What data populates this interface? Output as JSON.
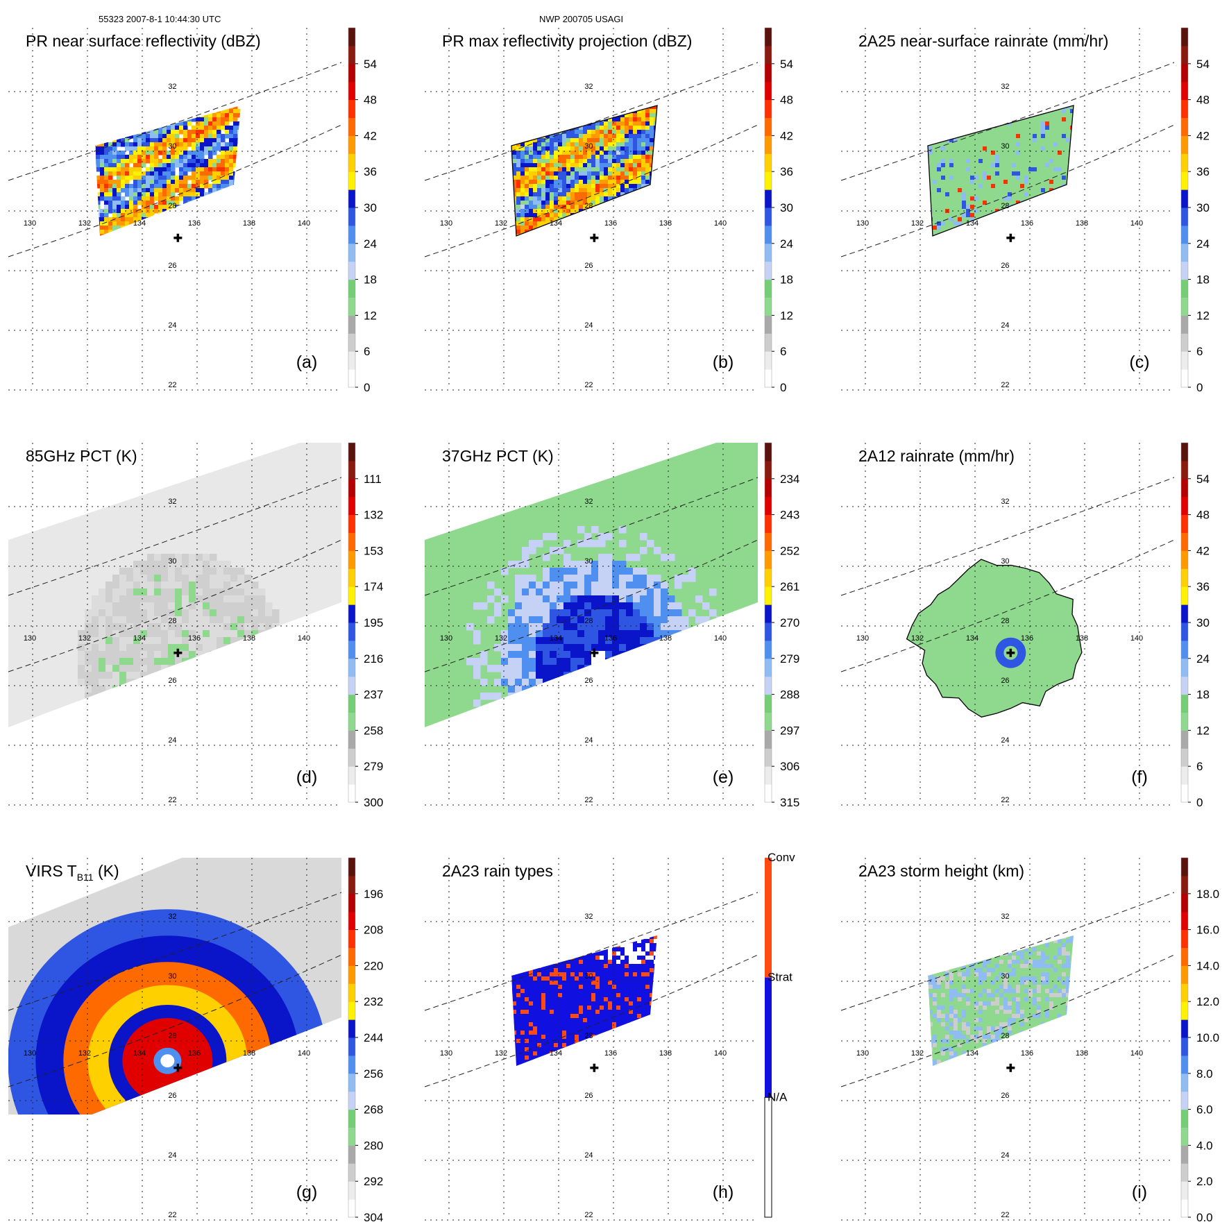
{
  "header": {
    "orbit_time": "55323 2007-8-1 10:44:30 UTC",
    "storm": "NWP 200705 USAGI"
  },
  "colors": {
    "palette": [
      "#ffffff",
      "#ececec",
      "#cdcdcd",
      "#a9a9a9",
      "#8ed98e",
      "#74cf74",
      "#c6d2f5",
      "#8fbcf2",
      "#4f8ff0",
      "#2e56e3",
      "#0a14c9",
      "#fff200",
      "#ffd000",
      "#ff9a00",
      "#ff6a00",
      "#ff3000",
      "#e00000",
      "#b40000",
      "#8a1a10",
      "#5a120c"
    ],
    "grid": "#222222",
    "na": "#ffffff",
    "strat": "#1010e0",
    "conv": "#ff4a10"
  },
  "chart_data": [
    {
      "type": "heatmap",
      "id": "a",
      "title": "PR near surface reflectivity (dBZ)",
      "panel_label": "(a)",
      "field": "pr_swath_reflectivity",
      "lon_ticks": [
        "130",
        "132",
        "134",
        "136",
        "138",
        "140"
      ],
      "lat_ticks": [
        "32",
        "30",
        "28",
        "26",
        "24",
        "22"
      ],
      "lon_range": [
        129,
        142
      ],
      "lat_range": [
        21,
        33
      ],
      "colorbar": {
        "ticks": [
          "0",
          "6",
          "12",
          "18",
          "24",
          "30",
          "36",
          "42",
          "48",
          "54"
        ],
        "range": [
          0,
          60
        ]
      },
      "storm_center": {
        "lon": 135.3,
        "lat": 27.1
      }
    },
    {
      "type": "heatmap",
      "id": "b",
      "title": "PR max reflectivity projection (dBZ)",
      "panel_label": "(b)",
      "field": "pr_swath_max",
      "lon_ticks": [
        "130",
        "132",
        "134",
        "136",
        "138",
        "140"
      ],
      "lat_ticks": [
        "32",
        "30",
        "28",
        "26",
        "24",
        "22"
      ],
      "lon_range": [
        129,
        142
      ],
      "lat_range": [
        21,
        33
      ],
      "colorbar": {
        "ticks": [
          "0",
          "6",
          "12",
          "18",
          "24",
          "30",
          "36",
          "42",
          "48",
          "54"
        ],
        "range": [
          0,
          60
        ]
      },
      "storm_center": {
        "lon": 135.3,
        "lat": 27.1
      }
    },
    {
      "type": "heatmap",
      "id": "c",
      "title": "2A25 near-surface rainrate (mm/hr)",
      "panel_label": "(c)",
      "field": "pr_rainrate",
      "lon_ticks": [
        "130",
        "132",
        "134",
        "136",
        "138",
        "140"
      ],
      "lat_ticks": [
        "32",
        "30",
        "28",
        "26",
        "24",
        "22"
      ],
      "lon_range": [
        129,
        142
      ],
      "lat_range": [
        21,
        33
      ],
      "colorbar": {
        "ticks": [
          "0",
          "6",
          "12",
          "18",
          "24",
          "30",
          "36",
          "42",
          "48",
          "54"
        ],
        "range": [
          0,
          60
        ]
      },
      "storm_center": {
        "lon": 135.3,
        "lat": 27.1
      }
    },
    {
      "type": "heatmap",
      "id": "d",
      "title": "85GHz PCT (K)",
      "panel_label": "(d)",
      "field": "tmi_85",
      "lon_ticks": [
        "130",
        "132",
        "134",
        "136",
        "138",
        "140"
      ],
      "lat_ticks": [
        "32",
        "30",
        "28",
        "26",
        "24",
        "22"
      ],
      "lon_range": [
        129,
        142
      ],
      "lat_range": [
        21,
        33
      ],
      "colorbar": {
        "ticks": [
          "300",
          "279",
          "258",
          "237",
          "216",
          "195",
          "174",
          "153",
          "132",
          "111"
        ],
        "range": [
          300,
          90
        ]
      },
      "storm_center": {
        "lon": 135.3,
        "lat": 27.1
      }
    },
    {
      "type": "heatmap",
      "id": "e",
      "title": "37GHz PCT (K)",
      "panel_label": "(e)",
      "field": "tmi_37",
      "lon_ticks": [
        "130",
        "132",
        "134",
        "136",
        "138",
        "140"
      ],
      "lat_ticks": [
        "32",
        "30",
        "28",
        "26",
        "24",
        "22"
      ],
      "lon_range": [
        129,
        142
      ],
      "lat_range": [
        21,
        33
      ],
      "colorbar": {
        "ticks": [
          "315",
          "306",
          "297",
          "288",
          "279",
          "270",
          "261",
          "252",
          "243",
          "234"
        ],
        "range": [
          315,
          225
        ]
      },
      "storm_center": {
        "lon": 135.3,
        "lat": 27.1
      }
    },
    {
      "type": "heatmap",
      "id": "f",
      "title": "2A12 rainrate (mm/hr)",
      "panel_label": "(f)",
      "field": "tmi_rain",
      "lon_ticks": [
        "130",
        "132",
        "134",
        "136",
        "138",
        "140"
      ],
      "lat_ticks": [
        "32",
        "30",
        "28",
        "26",
        "24",
        "22"
      ],
      "lon_range": [
        129,
        142
      ],
      "lat_range": [
        21,
        33
      ],
      "colorbar": {
        "ticks": [
          "0",
          "6",
          "12",
          "18",
          "24",
          "30",
          "36",
          "42",
          "48",
          "54"
        ],
        "range": [
          0,
          60
        ]
      },
      "storm_center": {
        "lon": 135.3,
        "lat": 27.1
      }
    },
    {
      "type": "heatmap",
      "id": "g",
      "title": "VIRS T",
      "title_sub": "B11",
      "title_suffix": " (K)",
      "panel_label": "(g)",
      "field": "virs_ir",
      "lon_ticks": [
        "130",
        "132",
        "134",
        "136",
        "138",
        "140"
      ],
      "lat_ticks": [
        "32",
        "30",
        "28",
        "26",
        "24",
        "22"
      ],
      "lon_range": [
        129,
        142
      ],
      "lat_range": [
        21,
        33
      ],
      "colorbar": {
        "ticks": [
          "304",
          "292",
          "280",
          "268",
          "256",
          "244",
          "232",
          "220",
          "208",
          "196"
        ],
        "range": [
          304,
          184
        ]
      },
      "storm_center": {
        "lon": 135.3,
        "lat": 27.1
      }
    },
    {
      "type": "heatmap",
      "id": "h",
      "title": "2A23 rain types",
      "panel_label": "(h)",
      "field": "rain_types",
      "lon_ticks": [
        "130",
        "132",
        "134",
        "136",
        "138",
        "140"
      ],
      "lat_ticks": [
        "32",
        "30",
        "28",
        "26",
        "24",
        "22"
      ],
      "lon_range": [
        129,
        142
      ],
      "lat_range": [
        21,
        33
      ],
      "colorbar": {
        "categorical": true,
        "ticks": [
          "N/A",
          "Strat",
          "Conv"
        ]
      },
      "storm_center": {
        "lon": 135.3,
        "lat": 27.1
      }
    },
    {
      "type": "heatmap",
      "id": "i",
      "title": "2A23 storm height (km)",
      "panel_label": "(i)",
      "field": "storm_height",
      "lon_ticks": [
        "130",
        "132",
        "134",
        "136",
        "138",
        "140"
      ],
      "lat_ticks": [
        "32",
        "30",
        "28",
        "26",
        "24",
        "22"
      ],
      "lon_range": [
        129,
        142
      ],
      "lat_range": [
        21,
        33
      ],
      "colorbar": {
        "ticks": [
          "0.0",
          "2.0",
          "4.0",
          "6.0",
          "8.0",
          "10.0",
          "12.0",
          "14.0",
          "16.0",
          "18.0"
        ],
        "range": [
          0,
          20
        ]
      },
      "storm_center": {
        "lon": 135.3,
        "lat": 27.1
      }
    }
  ]
}
